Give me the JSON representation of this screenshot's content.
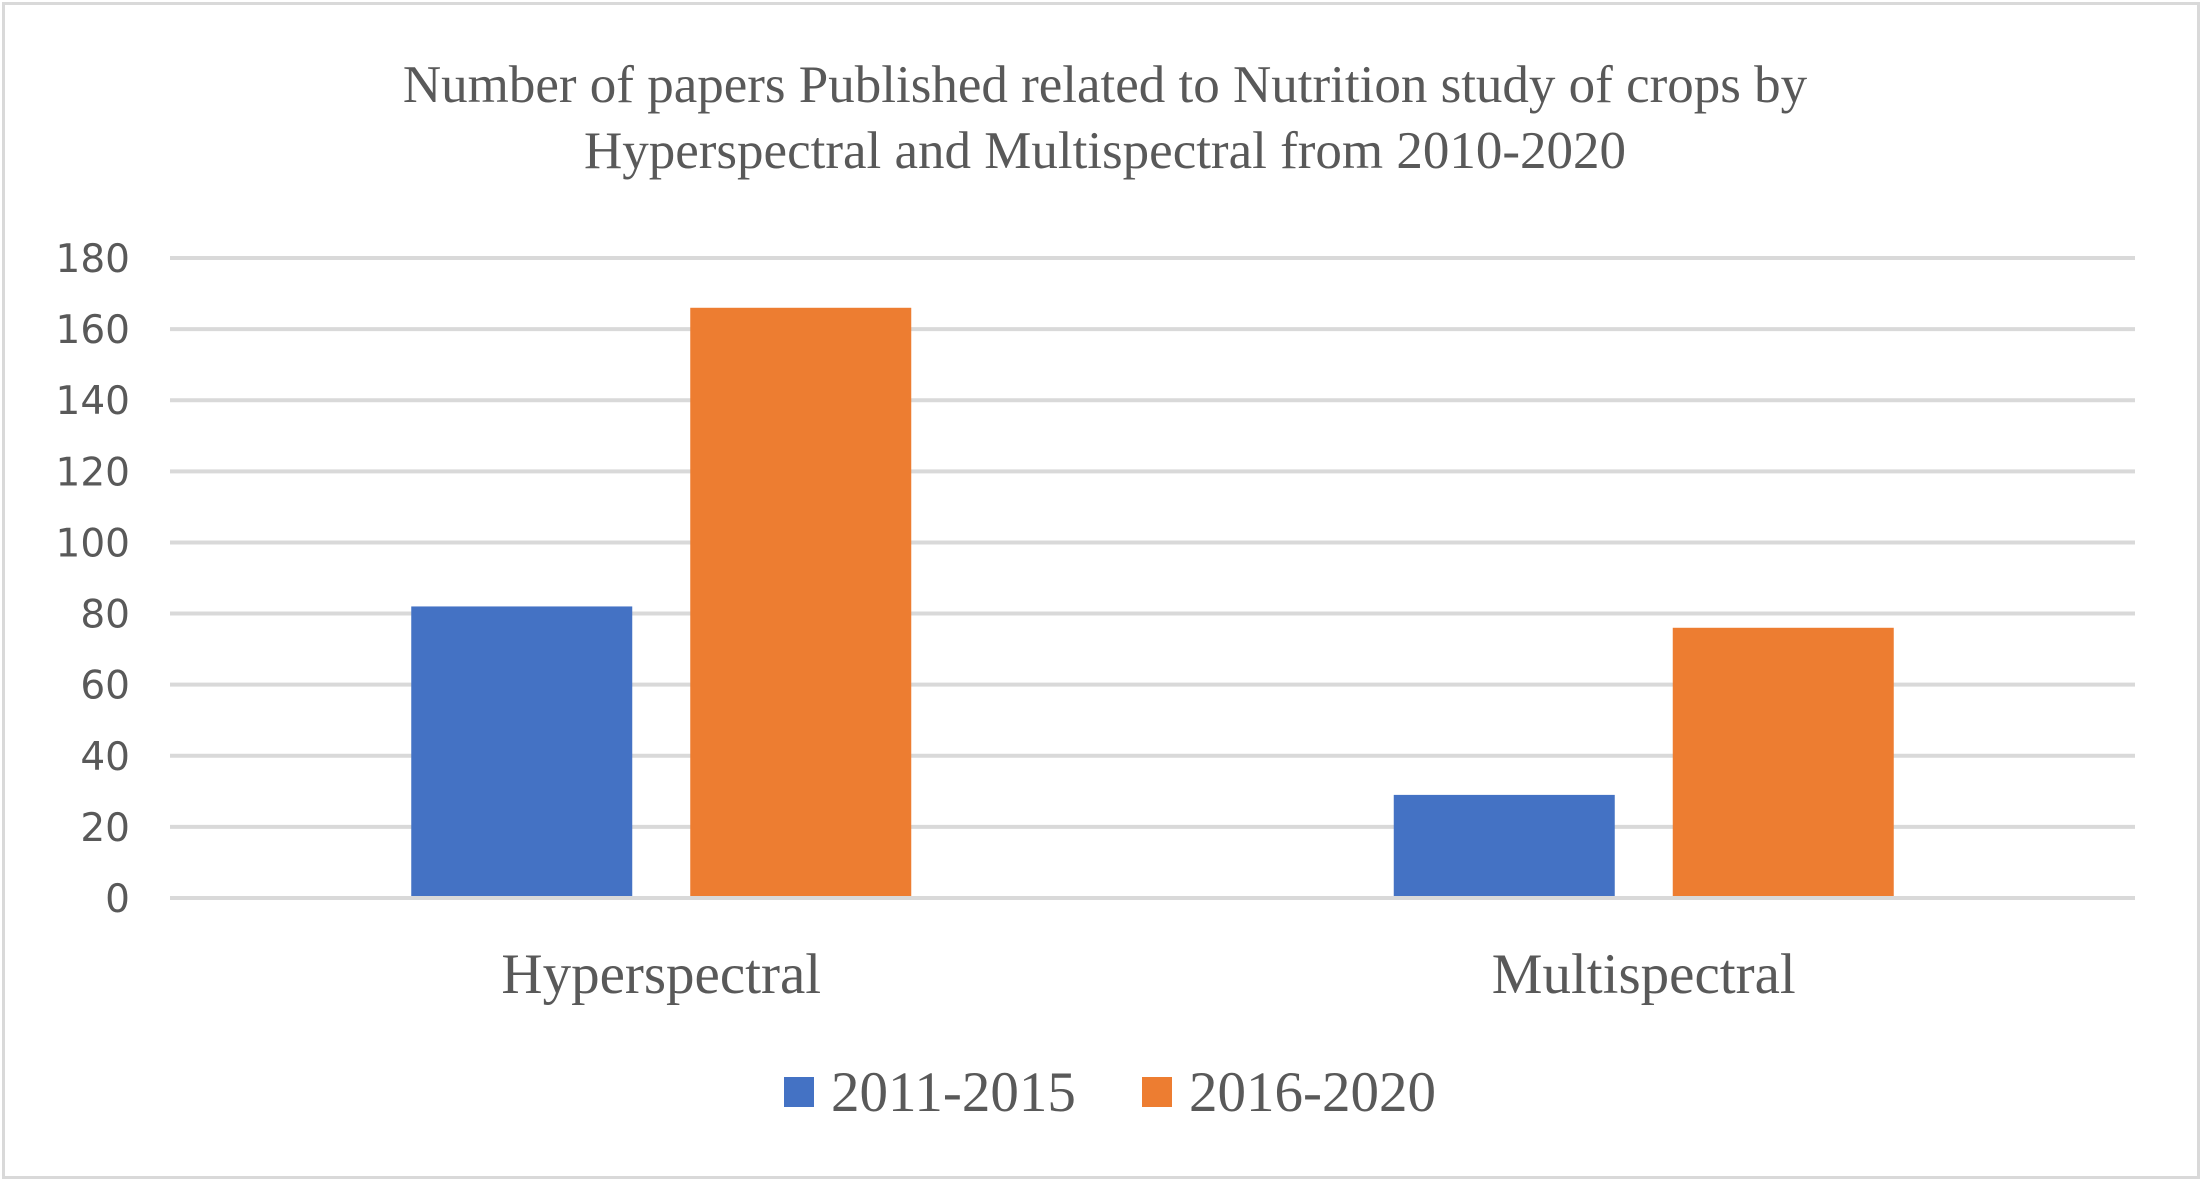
{
  "chart_data": {
    "type": "bar",
    "title_lines": [
      "Number of papers Published related to Nutrition study of crops by",
      "Hyperspectral and Multispectral from 2010-2020"
    ],
    "categories": [
      "Hyperspectral",
      "Multispectral"
    ],
    "series": [
      {
        "name": "2011-2015",
        "values": [
          82,
          29
        ],
        "color": "#4472c4"
      },
      {
        "name": "2016-2020",
        "values": [
          166,
          76
        ],
        "color": "#ed7d31"
      }
    ],
    "ylim": [
      0,
      180
    ],
    "yticks": [
      0,
      20,
      40,
      60,
      80,
      100,
      120,
      140,
      160,
      180
    ],
    "grid": true,
    "legend_position": "bottom"
  }
}
